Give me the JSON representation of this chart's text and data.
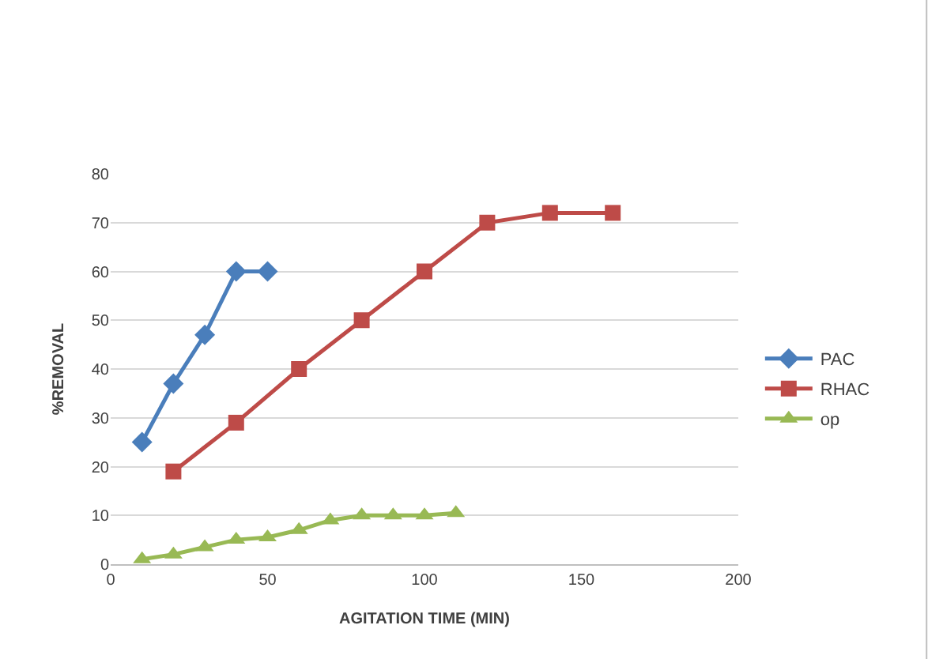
{
  "chart_data": {
    "type": "line",
    "xlabel": "AGITATION TIME (MIN)",
    "ylabel": "%REMOVAL",
    "xlim": [
      0,
      200
    ],
    "xticks": [
      0,
      50,
      100,
      150,
      200
    ],
    "ylim": [
      0,
      80
    ],
    "yticks": [
      0,
      10,
      20,
      30,
      40,
      50,
      60,
      70,
      80
    ],
    "grid": "y",
    "legend": "right",
    "series": [
      {
        "name": "PAC",
        "color": "#4a7ebb",
        "marker": "diamond",
        "x": [
          10,
          20,
          30,
          40,
          50
        ],
        "values": [
          25,
          37,
          47,
          60,
          60
        ]
      },
      {
        "name": "RHAC",
        "color": "#be4b48",
        "marker": "square",
        "x": [
          20,
          40,
          60,
          80,
          100,
          120,
          140,
          160
        ],
        "values": [
          19,
          29,
          40,
          50,
          60,
          70,
          72,
          72
        ]
      },
      {
        "name": "op",
        "color": "#98b954",
        "marker": "triangle",
        "x": [
          10,
          20,
          30,
          40,
          50,
          60,
          70,
          80,
          90,
          100,
          110
        ],
        "values": [
          1,
          2,
          3.5,
          5,
          5.5,
          7,
          9,
          10,
          10,
          10,
          10.5
        ]
      }
    ]
  }
}
